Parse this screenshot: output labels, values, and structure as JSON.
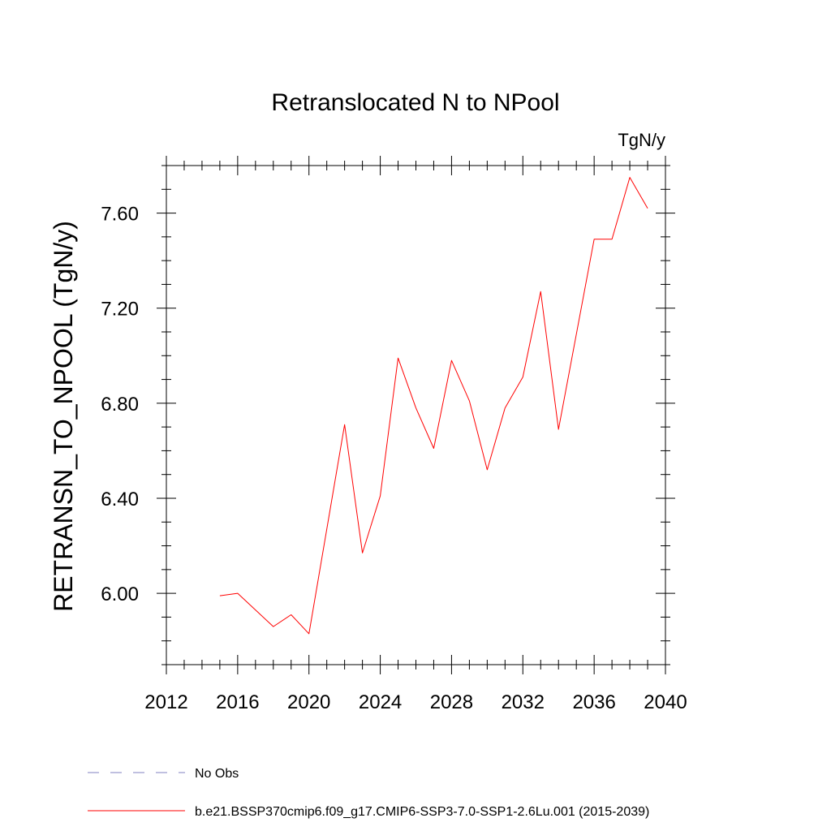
{
  "chart_data": {
    "type": "line",
    "title": "Retranslocated N to NPool",
    "units_label": "TgN/y",
    "ylabel": "RETRANSN_TO_NPOOL  (TgN/y)",
    "xlabel": "",
    "xlim": [
      2012,
      2040
    ],
    "ylim": [
      5.7,
      7.8
    ],
    "x_ticks": [
      2012,
      2016,
      2020,
      2024,
      2028,
      2032,
      2036,
      2040
    ],
    "x_tick_labels": [
      "2012",
      "2016",
      "2020",
      "2024",
      "2028",
      "2032",
      "2036",
      "2040"
    ],
    "x_minor_step": 1,
    "y_ticks": [
      6.0,
      6.4,
      6.8,
      7.2,
      7.6
    ],
    "y_tick_labels": [
      "6.00",
      "6.40",
      "6.80",
      "7.20",
      "7.60"
    ],
    "y_minor_step": 0.1,
    "grid": false,
    "legend_placement": "bottom",
    "series": [
      {
        "name": "b.e21.BSSP370cmip6.f09_g17.CMIP6-SSP3-7.0-SSP1-2.6Lu.001 (2015-2039)",
        "color": "#ff0000",
        "style": "solid",
        "x": [
          2015,
          2016,
          2017,
          2018,
          2019,
          2020,
          2021,
          2022,
          2023,
          2024,
          2025,
          2026,
          2027,
          2028,
          2029,
          2030,
          2031,
          2032,
          2033,
          2034,
          2035,
          2036,
          2037,
          2038,
          2039
        ],
        "y": [
          5.99,
          6.0,
          5.93,
          5.86,
          5.91,
          5.83,
          6.27,
          6.71,
          6.17,
          6.41,
          6.99,
          6.78,
          6.61,
          6.98,
          6.81,
          6.52,
          6.78,
          6.91,
          7.27,
          6.69,
          7.09,
          7.49,
          7.49,
          7.75,
          7.62
        ]
      }
    ],
    "legend": [
      {
        "label": "No Obs",
        "color": "#8080c0",
        "style": "dashed"
      },
      {
        "label": "b.e21.BSSP370cmip6.f09_g17.CMIP6-SSP3-7.0-SSP1-2.6Lu.001 (2015-2039)",
        "color": "#ff0000",
        "style": "solid"
      }
    ]
  }
}
